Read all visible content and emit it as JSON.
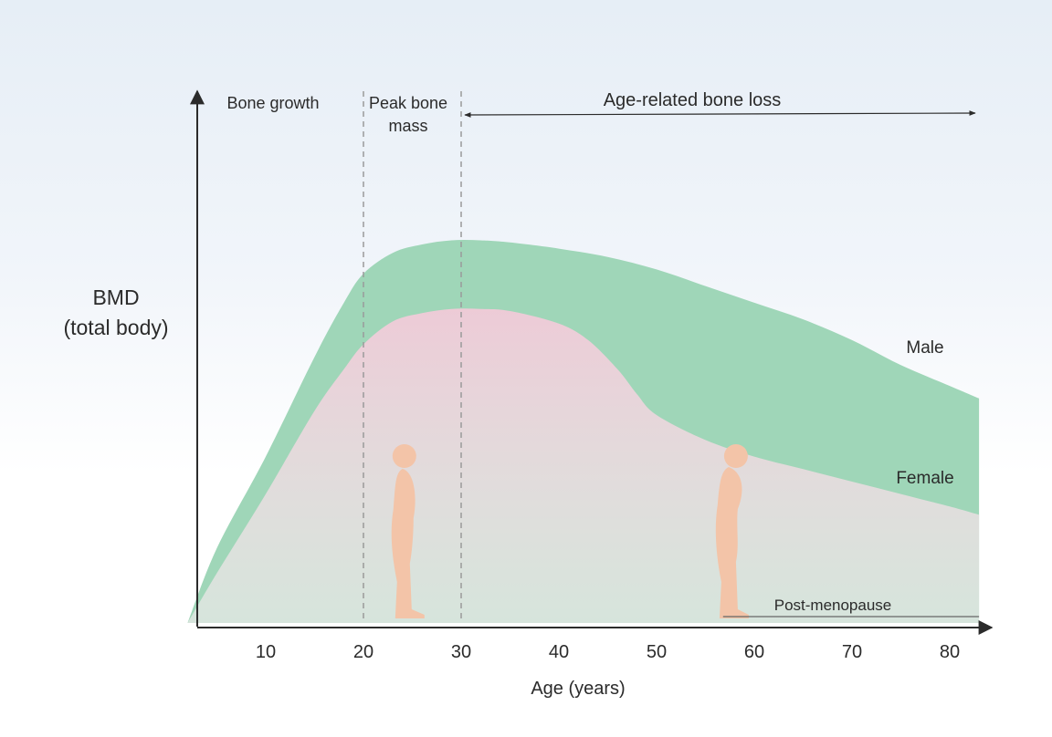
{
  "chart_data": {
    "type": "area",
    "xlabel": "Age (years)",
    "ylabel_lines": [
      "BMD",
      "(total body)"
    ],
    "x_ticks": [
      10,
      20,
      30,
      40,
      50,
      60,
      70,
      80
    ],
    "xlim": [
      2,
      85
    ],
    "ylim": [
      0,
      100
    ],
    "series": [
      {
        "name": "Male",
        "color": "#9fd6b8",
        "x": [
          2,
          5,
          10,
          15,
          18,
          20,
          23,
          26,
          29,
          32,
          35,
          40,
          45,
          50,
          55,
          60,
          65,
          70,
          75,
          80,
          83
        ],
        "values": [
          0,
          18,
          40,
          64,
          77,
          84,
          89,
          91,
          92,
          92,
          91.5,
          90,
          88,
          85,
          81,
          77,
          73,
          68,
          62,
          57,
          54
        ]
      },
      {
        "name": "Female",
        "color": "#f3cdd9",
        "x": [
          2,
          5,
          10,
          15,
          18,
          20,
          23,
          26,
          29,
          32,
          35,
          40,
          43,
          46,
          48,
          50,
          55,
          60,
          65,
          70,
          75,
          80,
          83
        ],
        "values": [
          0,
          12,
          31,
          51,
          61,
          67,
          72.5,
          74.5,
          75.5,
          75.5,
          75,
          72,
          68,
          61,
          55,
          50,
          44,
          40,
          37,
          34,
          31,
          28,
          26
        ]
      }
    ],
    "vlines": [
      20,
      30
    ],
    "regions": {
      "bone_growth": "Bone growth",
      "peak_bone_mass_lines": [
        "Peak bone",
        "mass"
      ],
      "age_related_loss": "Age-related bone loss"
    },
    "post_menopause": {
      "label": "Post-menopause",
      "x_start": 54,
      "x_end": 83
    },
    "figures": [
      {
        "name": "young-woman",
        "age": 24
      },
      {
        "name": "older-woman",
        "age": 57
      }
    ],
    "colors": {
      "axis": "#2b2b2b",
      "dashed": "#9a9a9a",
      "figure": "#f3c4a8"
    }
  }
}
